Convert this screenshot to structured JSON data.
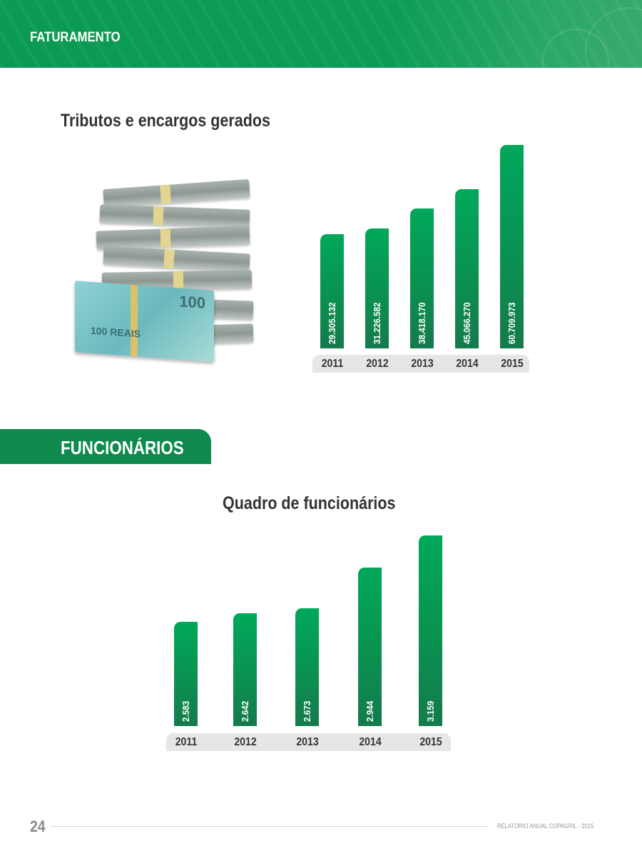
{
  "header": {
    "title": "FATURAMENTO"
  },
  "section1": {
    "title": "Tributos e encargos gerados"
  },
  "section2": {
    "tab": "FUNCIONÁRIOS",
    "title": "Quadro de funcionários"
  },
  "image": {
    "note_text": [
      "100",
      "100 REAIS"
    ]
  },
  "colors": {
    "brand_green": "#0c9c55",
    "bar_top": "#00a85a",
    "bar_bottom": "#157a4c",
    "strip": "#e6e6e8"
  },
  "chart_data": [
    {
      "type": "bar",
      "title": "Tributos e encargos gerados",
      "categories": [
        "2011",
        "2012",
        "2013",
        "2014",
        "2015"
      ],
      "values": [
        29305132,
        31226582,
        38418170,
        45066270,
        60709973
      ],
      "labels": [
        "29.305.132",
        "31.226.582",
        "38.418.170",
        "45.066.270",
        "60.709.973"
      ],
      "grid": false
    },
    {
      "type": "bar",
      "title": "Quadro de funcionários",
      "categories": [
        "2011",
        "2012",
        "2013",
        "2014",
        "2015"
      ],
      "values": [
        2583,
        2642,
        2673,
        2944,
        3159
      ],
      "labels": [
        "2.583",
        "2.642",
        "2.673",
        "2.944",
        "3.159"
      ],
      "grid": false
    }
  ],
  "footer": {
    "page_number": "24",
    "text": "RELATÓRIO ANUAL COPAGRIL - 2015"
  }
}
